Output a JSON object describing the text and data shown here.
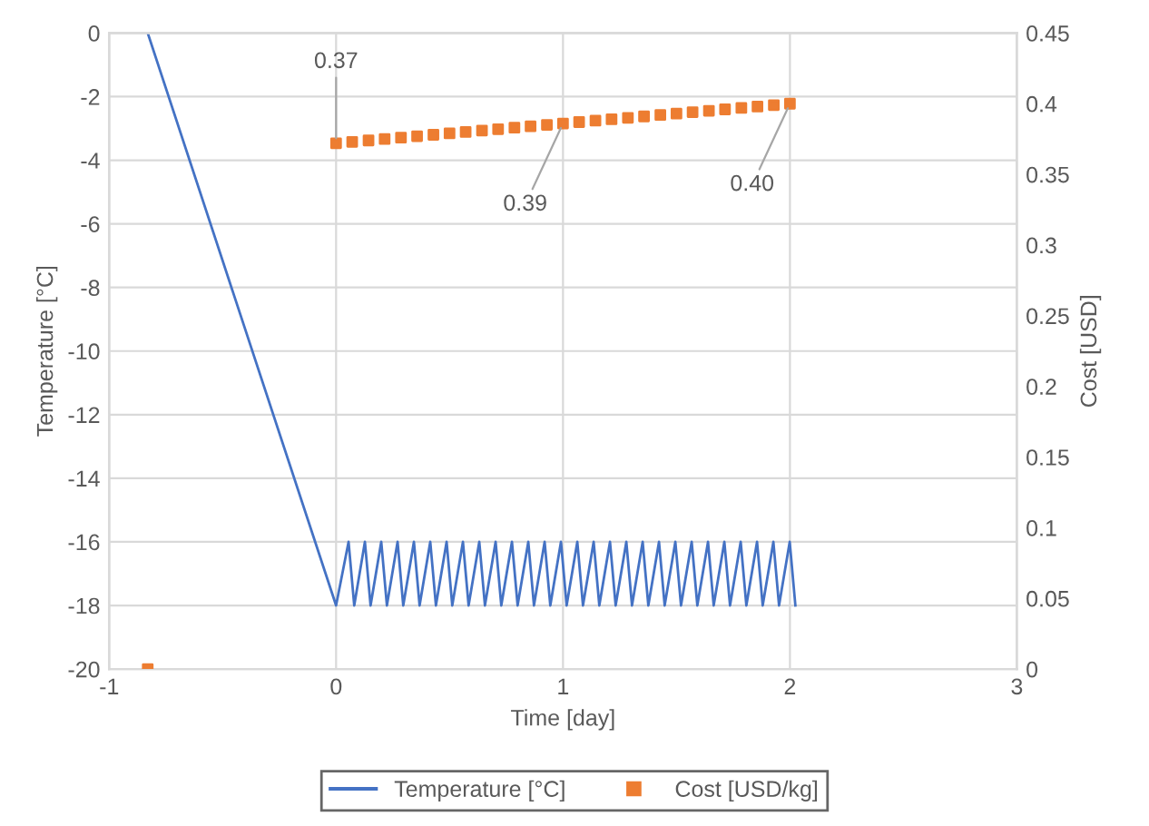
{
  "chart_data": {
    "type": "line",
    "xlabel": "Time [day]",
    "ylabel": "Temperature [°C]",
    "y2label": "Cost [USD]",
    "xlim": [
      -1,
      3
    ],
    "xticks": [
      -1,
      0,
      1,
      2,
      3
    ],
    "ylim": [
      -20,
      0
    ],
    "yticks": [
      -20,
      -18,
      -16,
      -14,
      -12,
      -10,
      -8,
      -6,
      -4,
      -2,
      0
    ],
    "y2lim": [
      0,
      0.45
    ],
    "y2ticks": [
      {
        "value": 0,
        "label": "0"
      },
      {
        "value": 0.05,
        "label": "0.05"
      },
      {
        "value": 0.1,
        "label": "0.1"
      },
      {
        "value": 0.15,
        "label": "0.15"
      },
      {
        "value": 0.2,
        "label": "0.2"
      },
      {
        "value": 0.25,
        "label": "0.25"
      },
      {
        "value": 0.3,
        "label": "0.3"
      },
      {
        "value": 0.35,
        "label": "0.35"
      },
      {
        "value": 0.4,
        "label": "0.4"
      },
      {
        "value": 0.45,
        "label": "0.45"
      }
    ],
    "grid": true,
    "legend": "bottom",
    "series": [
      {
        "name": "Temperature [°C]",
        "color": "#4472c4",
        "marker": "none",
        "line_style": "solid",
        "x": [
          -0.83,
          0,
          0.055,
          0.08,
          0.127,
          0.152,
          0.199,
          0.224,
          0.271,
          0.296,
          0.343,
          0.368,
          0.415,
          0.44,
          0.487,
          0.512,
          0.559,
          0.584,
          0.631,
          0.656,
          0.703,
          0.728,
          0.775,
          0.8,
          0.847,
          0.872,
          0.919,
          0.944,
          0.991,
          1.016,
          1.063,
          1.088,
          1.135,
          1.16,
          1.207,
          1.232,
          1.279,
          1.304,
          1.351,
          1.376,
          1.423,
          1.448,
          1.495,
          1.52,
          1.567,
          1.592,
          1.639,
          1.664,
          1.711,
          1.736,
          1.783,
          1.808,
          1.855,
          1.88,
          1.927,
          1.952,
          1.999,
          2.024
        ],
        "values": [
          0,
          -18,
          -16,
          -18,
          -16,
          -18,
          -16,
          -18,
          -16,
          -18,
          -16,
          -18,
          -16,
          -18,
          -16,
          -18,
          -16,
          -18,
          -16,
          -18,
          -16,
          -18,
          -16,
          -18,
          -16,
          -18,
          -16,
          -18,
          -16,
          -18,
          -16,
          -18,
          -16,
          -18,
          -16,
          -18,
          -16,
          -18,
          -16,
          -18,
          -16,
          -18,
          -16,
          -18,
          -16,
          -18,
          -16,
          -18,
          -16,
          -18,
          -16,
          -18,
          -16,
          -18,
          -16,
          -18,
          -16,
          -18
        ]
      },
      {
        "name": "Cost [USD/kg]",
        "type": "scatter",
        "axis": "y2",
        "color": "#ed7d31",
        "marker": "square",
        "x": [
          -0.83,
          0,
          0.071,
          0.143,
          0.214,
          0.286,
          0.357,
          0.429,
          0.5,
          0.571,
          0.643,
          0.714,
          0.786,
          0.857,
          0.929,
          1,
          1.071,
          1.143,
          1.214,
          1.286,
          1.357,
          1.429,
          1.5,
          1.571,
          1.643,
          1.714,
          1.786,
          1.857,
          1.929,
          2
        ],
        "values": [
          0,
          0.372,
          0.373,
          0.374,
          0.375,
          0.376,
          0.377,
          0.378,
          0.379,
          0.38,
          0.381,
          0.382,
          0.383,
          0.384,
          0.385,
          0.386,
          0.387,
          0.388,
          0.389,
          0.39,
          0.391,
          0.392,
          0.393,
          0.394,
          0.395,
          0.396,
          0.397,
          0.398,
          0.399,
          0.4
        ],
        "value_labels": [
          null,
          "0.37",
          null,
          null,
          null,
          null,
          null,
          null,
          null,
          null,
          null,
          null,
          null,
          null,
          null,
          "0.39",
          null,
          null,
          null,
          null,
          null,
          null,
          null,
          null,
          null,
          null,
          null,
          null,
          null,
          "0.40"
        ]
      }
    ]
  }
}
